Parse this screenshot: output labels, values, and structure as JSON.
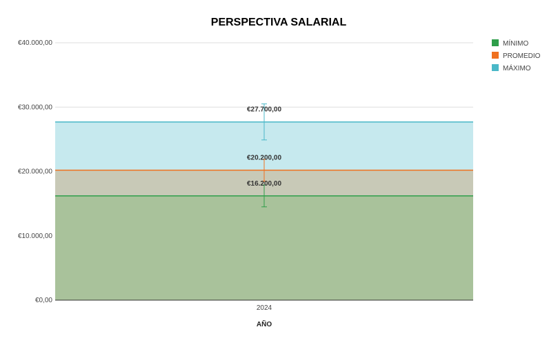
{
  "chart_data": {
    "type": "area",
    "title": "PERSPECTIVA SALARIAL",
    "xlabel": "AÑO",
    "ylabel": "",
    "categories": [
      "2024"
    ],
    "ylim": [
      0,
      40000
    ],
    "yticks": [
      {
        "value": 0,
        "label": "€0,00"
      },
      {
        "value": 10000,
        "label": "€10.000,00"
      },
      {
        "value": 20000,
        "label": "€20.000,00"
      },
      {
        "value": 30000,
        "label": "€30.000,00"
      },
      {
        "value": 40000,
        "label": "€40.000,00"
      }
    ],
    "grid": true,
    "legend_position": "right",
    "series": [
      {
        "name": "MÍNIMO",
        "values": [
          16200
        ],
        "label": "€16.200,00",
        "color": "#2e9e4a",
        "fill": "#a9c29b",
        "error": [
          14500,
          17900
        ]
      },
      {
        "name": "PROMEDIO",
        "values": [
          20200
        ],
        "label": "€20.200,00",
        "color": "#f07120",
        "fill": "#c8c9b7",
        "error": [
          18500,
          21900
        ]
      },
      {
        "name": "MÁXIMO",
        "values": [
          27700
        ],
        "label": "€27.700,00",
        "color": "#4ab8c8",
        "fill": "#c6e9ee",
        "error": [
          24900,
          30500
        ]
      }
    ]
  }
}
